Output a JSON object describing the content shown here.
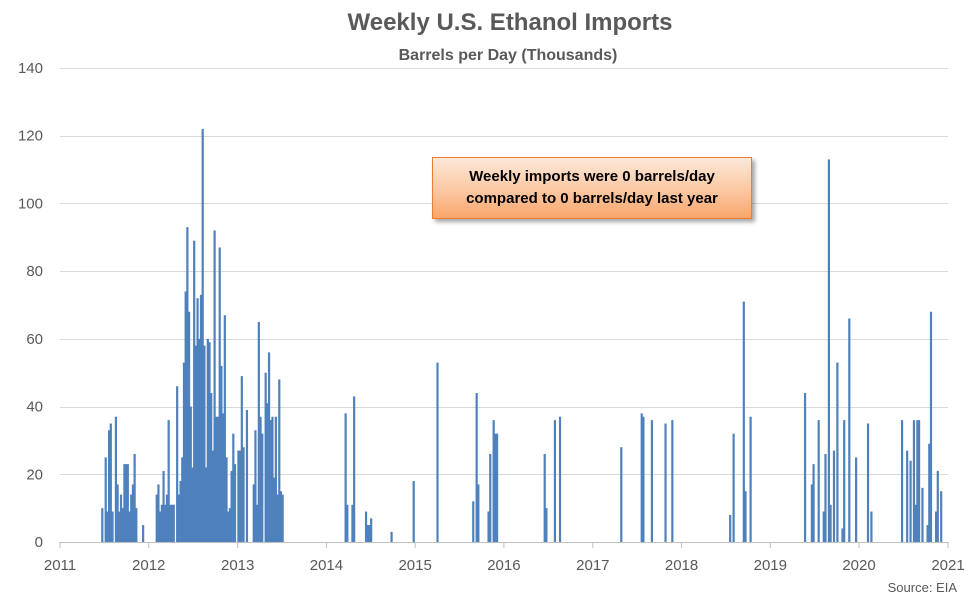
{
  "chart_data": {
    "type": "bar",
    "title": "Weekly U.S. Ethanol Imports",
    "subtitle": "Barrels per Day (Thousands)",
    "xlabel": "",
    "ylabel": "",
    "ylim": [
      0,
      140
    ],
    "yticks": [
      "0",
      "20",
      "40",
      "60",
      "80",
      "100",
      "120",
      "140"
    ],
    "xlim": [
      "2011-01-01",
      "2021-01-01"
    ],
    "xticks": [
      "2011",
      "2012",
      "2013",
      "2014",
      "2015",
      "2016",
      "2017",
      "2018",
      "2019",
      "2020",
      "2021"
    ],
    "grid": true,
    "bar_color": "#4f81bd",
    "points": [
      {
        "x": "2011-06-24",
        "y": 10
      },
      {
        "x": "2011-07-08",
        "y": 25
      },
      {
        "x": "2011-07-15",
        "y": 9
      },
      {
        "x": "2011-07-22",
        "y": 33
      },
      {
        "x": "2011-07-29",
        "y": 35
      },
      {
        "x": "2011-08-05",
        "y": 9
      },
      {
        "x": "2011-08-19",
        "y": 37
      },
      {
        "x": "2011-08-26",
        "y": 17
      },
      {
        "x": "2011-09-02",
        "y": 9
      },
      {
        "x": "2011-09-09",
        "y": 14
      },
      {
        "x": "2011-09-16",
        "y": 10
      },
      {
        "x": "2011-09-23",
        "y": 23
      },
      {
        "x": "2011-09-30",
        "y": 23
      },
      {
        "x": "2011-10-07",
        "y": 23
      },
      {
        "x": "2011-10-14",
        "y": 9
      },
      {
        "x": "2011-10-21",
        "y": 14
      },
      {
        "x": "2011-10-28",
        "y": 17
      },
      {
        "x": "2011-11-04",
        "y": 26
      },
      {
        "x": "2011-11-11",
        "y": 10
      },
      {
        "x": "2011-12-09",
        "y": 5
      },
      {
        "x": "2012-02-03",
        "y": 14
      },
      {
        "x": "2012-02-10",
        "y": 17
      },
      {
        "x": "2012-02-17",
        "y": 9
      },
      {
        "x": "2012-02-24",
        "y": 11
      },
      {
        "x": "2012-03-02",
        "y": 21
      },
      {
        "x": "2012-03-09",
        "y": 11
      },
      {
        "x": "2012-03-16",
        "y": 14
      },
      {
        "x": "2012-03-23",
        "y": 36
      },
      {
        "x": "2012-03-30",
        "y": 11
      },
      {
        "x": "2012-04-06",
        "y": 11
      },
      {
        "x": "2012-04-13",
        "y": 11
      },
      {
        "x": "2012-04-27",
        "y": 46
      },
      {
        "x": "2012-05-04",
        "y": 14
      },
      {
        "x": "2012-05-11",
        "y": 18
      },
      {
        "x": "2012-05-18",
        "y": 25
      },
      {
        "x": "2012-05-25",
        "y": 53
      },
      {
        "x": "2012-06-01",
        "y": 74
      },
      {
        "x": "2012-06-08",
        "y": 93
      },
      {
        "x": "2012-06-15",
        "y": 68
      },
      {
        "x": "2012-06-22",
        "y": 40
      },
      {
        "x": "2012-06-29",
        "y": 22
      },
      {
        "x": "2012-07-06",
        "y": 89
      },
      {
        "x": "2012-07-13",
        "y": 58
      },
      {
        "x": "2012-07-20",
        "y": 72
      },
      {
        "x": "2012-07-27",
        "y": 60
      },
      {
        "x": "2012-08-03",
        "y": 73
      },
      {
        "x": "2012-08-10",
        "y": 122
      },
      {
        "x": "2012-08-17",
        "y": 58
      },
      {
        "x": "2012-08-24",
        "y": 22
      },
      {
        "x": "2012-08-31",
        "y": 60
      },
      {
        "x": "2012-09-07",
        "y": 59
      },
      {
        "x": "2012-09-14",
        "y": 44
      },
      {
        "x": "2012-09-21",
        "y": 27
      },
      {
        "x": "2012-09-28",
        "y": 92
      },
      {
        "x": "2012-10-05",
        "y": 37
      },
      {
        "x": "2012-10-12",
        "y": 37
      },
      {
        "x": "2012-10-19",
        "y": 87
      },
      {
        "x": "2012-10-26",
        "y": 52
      },
      {
        "x": "2012-11-02",
        "y": 38
      },
      {
        "x": "2012-11-09",
        "y": 67
      },
      {
        "x": "2012-11-16",
        "y": 25
      },
      {
        "x": "2012-11-23",
        "y": 9
      },
      {
        "x": "2012-11-30",
        "y": 10
      },
      {
        "x": "2012-12-07",
        "y": 21
      },
      {
        "x": "2012-12-14",
        "y": 32
      },
      {
        "x": "2012-12-21",
        "y": 23
      },
      {
        "x": "2013-01-04",
        "y": 27
      },
      {
        "x": "2013-01-11",
        "y": 27
      },
      {
        "x": "2013-01-18",
        "y": 49
      },
      {
        "x": "2013-01-25",
        "y": 28
      },
      {
        "x": "2013-02-08",
        "y": 39
      },
      {
        "x": "2013-03-08",
        "y": 17
      },
      {
        "x": "2013-03-15",
        "y": 33
      },
      {
        "x": "2013-03-22",
        "y": 11
      },
      {
        "x": "2013-03-29",
        "y": 65
      },
      {
        "x": "2013-04-05",
        "y": 37
      },
      {
        "x": "2013-04-12",
        "y": 32
      },
      {
        "x": "2013-04-26",
        "y": 50
      },
      {
        "x": "2013-05-03",
        "y": 41
      },
      {
        "x": "2013-05-10",
        "y": 56
      },
      {
        "x": "2013-05-17",
        "y": 36
      },
      {
        "x": "2013-05-24",
        "y": 37
      },
      {
        "x": "2013-05-31",
        "y": 19
      },
      {
        "x": "2013-06-07",
        "y": 37
      },
      {
        "x": "2013-06-14",
        "y": 14
      },
      {
        "x": "2013-06-21",
        "y": 48
      },
      {
        "x": "2013-06-28",
        "y": 15
      },
      {
        "x": "2013-07-05",
        "y": 14
      },
      {
        "x": "2014-03-21",
        "y": 38
      },
      {
        "x": "2014-03-28",
        "y": 11
      },
      {
        "x": "2014-04-18",
        "y": 11
      },
      {
        "x": "2014-04-25",
        "y": 43
      },
      {
        "x": "2014-06-13",
        "y": 9
      },
      {
        "x": "2014-06-20",
        "y": 5
      },
      {
        "x": "2014-06-27",
        "y": 5
      },
      {
        "x": "2014-07-04",
        "y": 7
      },
      {
        "x": "2014-09-26",
        "y": 3
      },
      {
        "x": "2014-12-26",
        "y": 18
      },
      {
        "x": "2015-04-03",
        "y": 53
      },
      {
        "x": "2015-08-28",
        "y": 12
      },
      {
        "x": "2015-09-11",
        "y": 44
      },
      {
        "x": "2015-09-18",
        "y": 17
      },
      {
        "x": "2015-10-30",
        "y": 9
      },
      {
        "x": "2015-11-06",
        "y": 26
      },
      {
        "x": "2015-11-20",
        "y": 36
      },
      {
        "x": "2015-11-27",
        "y": 32
      },
      {
        "x": "2015-12-04",
        "y": 32
      },
      {
        "x": "2016-06-17",
        "y": 26
      },
      {
        "x": "2016-06-24",
        "y": 10
      },
      {
        "x": "2016-07-29",
        "y": 36
      },
      {
        "x": "2016-08-19",
        "y": 37
      },
      {
        "x": "2017-04-28",
        "y": 28
      },
      {
        "x": "2017-07-21",
        "y": 38
      },
      {
        "x": "2017-07-28",
        "y": 37
      },
      {
        "x": "2017-09-01",
        "y": 36
      },
      {
        "x": "2017-10-27",
        "y": 35
      },
      {
        "x": "2017-11-24",
        "y": 36
      },
      {
        "x": "2018-07-20",
        "y": 8
      },
      {
        "x": "2018-08-03",
        "y": 32
      },
      {
        "x": "2018-09-14",
        "y": 71
      },
      {
        "x": "2018-09-21",
        "y": 15
      },
      {
        "x": "2018-10-12",
        "y": 37
      },
      {
        "x": "2019-05-24",
        "y": 44
      },
      {
        "x": "2019-06-21",
        "y": 17
      },
      {
        "x": "2019-06-28",
        "y": 23
      },
      {
        "x": "2019-07-19",
        "y": 36
      },
      {
        "x": "2019-08-09",
        "y": 9
      },
      {
        "x": "2019-08-16",
        "y": 26
      },
      {
        "x": "2019-08-30",
        "y": 113
      },
      {
        "x": "2019-09-06",
        "y": 11
      },
      {
        "x": "2019-09-20",
        "y": 27
      },
      {
        "x": "2019-10-04",
        "y": 53
      },
      {
        "x": "2019-10-25",
        "y": 4
      },
      {
        "x": "2019-11-01",
        "y": 36
      },
      {
        "x": "2019-11-22",
        "y": 66
      },
      {
        "x": "2019-12-20",
        "y": 25
      },
      {
        "x": "2020-02-07",
        "y": 35
      },
      {
        "x": "2020-02-21",
        "y": 9
      },
      {
        "x": "2020-06-26",
        "y": 36
      },
      {
        "x": "2020-07-17",
        "y": 27
      },
      {
        "x": "2020-07-31",
        "y": 24
      },
      {
        "x": "2020-08-14",
        "y": 36
      },
      {
        "x": "2020-08-21",
        "y": 11
      },
      {
        "x": "2020-08-28",
        "y": 36
      },
      {
        "x": "2020-09-04",
        "y": 36
      },
      {
        "x": "2020-09-18",
        "y": 16
      },
      {
        "x": "2020-10-09",
        "y": 5
      },
      {
        "x": "2020-10-16",
        "y": 29
      },
      {
        "x": "2020-10-23",
        "y": 68
      },
      {
        "x": "2020-11-13",
        "y": 9
      },
      {
        "x": "2020-11-20",
        "y": 21
      },
      {
        "x": "2020-12-04",
        "y": 15
      }
    ],
    "annotation": {
      "line1": "Weekly imports were 0 barrels/day",
      "line2": "compared to 0 barrels/day last year"
    },
    "source": "Source: EIA"
  }
}
